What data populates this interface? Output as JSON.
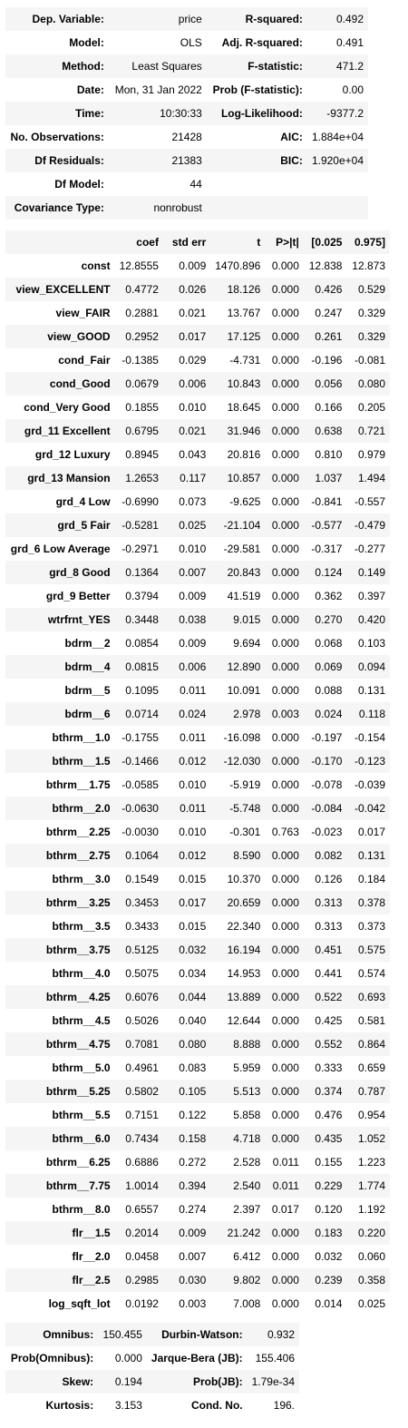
{
  "summary": [
    [
      "Dep. Variable:",
      "price",
      "R-squared:",
      "0.492"
    ],
    [
      "Model:",
      "OLS",
      "Adj. R-squared:",
      "0.491"
    ],
    [
      "Method:",
      "Least Squares",
      "F-statistic:",
      "471.2"
    ],
    [
      "Date:",
      "Mon, 31 Jan 2022",
      "Prob (F-statistic):",
      "0.00"
    ],
    [
      "Time:",
      "10:30:33",
      "Log-Likelihood:",
      "-9377.2"
    ],
    [
      "No. Observations:",
      "21428",
      "AIC:",
      "1.884e+04"
    ],
    [
      "Df Residuals:",
      "21383",
      "BIC:",
      "1.920e+04"
    ],
    [
      "Df Model:",
      "44",
      "",
      ""
    ],
    [
      "Covariance Type:",
      "nonrobust",
      "",
      ""
    ]
  ],
  "coef_headers": [
    "",
    "coef",
    "std err",
    "t",
    "P>|t|",
    "[0.025",
    "0.975]"
  ],
  "coef_rows": [
    [
      "const",
      "12.8555",
      "0.009",
      "1470.896",
      "0.000",
      "12.838",
      "12.873"
    ],
    [
      "view_EXCELLENT",
      "0.4772",
      "0.026",
      "18.126",
      "0.000",
      "0.426",
      "0.529"
    ],
    [
      "view_FAIR",
      "0.2881",
      "0.021",
      "13.767",
      "0.000",
      "0.247",
      "0.329"
    ],
    [
      "view_GOOD",
      "0.2952",
      "0.017",
      "17.125",
      "0.000",
      "0.261",
      "0.329"
    ],
    [
      "cond_Fair",
      "-0.1385",
      "0.029",
      "-4.731",
      "0.000",
      "-0.196",
      "-0.081"
    ],
    [
      "cond_Good",
      "0.0679",
      "0.006",
      "10.843",
      "0.000",
      "0.056",
      "0.080"
    ],
    [
      "cond_Very Good",
      "0.1855",
      "0.010",
      "18.645",
      "0.000",
      "0.166",
      "0.205"
    ],
    [
      "grd_11 Excellent",
      "0.6795",
      "0.021",
      "31.946",
      "0.000",
      "0.638",
      "0.721"
    ],
    [
      "grd_12 Luxury",
      "0.8945",
      "0.043",
      "20.816",
      "0.000",
      "0.810",
      "0.979"
    ],
    [
      "grd_13 Mansion",
      "1.2653",
      "0.117",
      "10.857",
      "0.000",
      "1.037",
      "1.494"
    ],
    [
      "grd_4 Low",
      "-0.6990",
      "0.073",
      "-9.625",
      "0.000",
      "-0.841",
      "-0.557"
    ],
    [
      "grd_5 Fair",
      "-0.5281",
      "0.025",
      "-21.104",
      "0.000",
      "-0.577",
      "-0.479"
    ],
    [
      "grd_6 Low Average",
      "-0.2971",
      "0.010",
      "-29.581",
      "0.000",
      "-0.317",
      "-0.277"
    ],
    [
      "grd_8 Good",
      "0.1364",
      "0.007",
      "20.843",
      "0.000",
      "0.124",
      "0.149"
    ],
    [
      "grd_9 Better",
      "0.3794",
      "0.009",
      "41.519",
      "0.000",
      "0.362",
      "0.397"
    ],
    [
      "wtrfrnt_YES",
      "0.3448",
      "0.038",
      "9.015",
      "0.000",
      "0.270",
      "0.420"
    ],
    [
      "bdrm__2",
      "0.0854",
      "0.009",
      "9.694",
      "0.000",
      "0.068",
      "0.103"
    ],
    [
      "bdrm__4",
      "0.0815",
      "0.006",
      "12.890",
      "0.000",
      "0.069",
      "0.094"
    ],
    [
      "bdrm__5",
      "0.1095",
      "0.011",
      "10.091",
      "0.000",
      "0.088",
      "0.131"
    ],
    [
      "bdrm__6",
      "0.0714",
      "0.024",
      "2.978",
      "0.003",
      "0.024",
      "0.118"
    ],
    [
      "bthrm__1.0",
      "-0.1755",
      "0.011",
      "-16.098",
      "0.000",
      "-0.197",
      "-0.154"
    ],
    [
      "bthrm__1.5",
      "-0.1466",
      "0.012",
      "-12.030",
      "0.000",
      "-0.170",
      "-0.123"
    ],
    [
      "bthrm__1.75",
      "-0.0585",
      "0.010",
      "-5.919",
      "0.000",
      "-0.078",
      "-0.039"
    ],
    [
      "bthrm__2.0",
      "-0.0630",
      "0.011",
      "-5.748",
      "0.000",
      "-0.084",
      "-0.042"
    ],
    [
      "bthrm__2.25",
      "-0.0030",
      "0.010",
      "-0.301",
      "0.763",
      "-0.023",
      "0.017"
    ],
    [
      "bthrm__2.75",
      "0.1064",
      "0.012",
      "8.590",
      "0.000",
      "0.082",
      "0.131"
    ],
    [
      "bthrm__3.0",
      "0.1549",
      "0.015",
      "10.370",
      "0.000",
      "0.126",
      "0.184"
    ],
    [
      "bthrm__3.25",
      "0.3453",
      "0.017",
      "20.659",
      "0.000",
      "0.313",
      "0.378"
    ],
    [
      "bthrm__3.5",
      "0.3433",
      "0.015",
      "22.340",
      "0.000",
      "0.313",
      "0.373"
    ],
    [
      "bthrm__3.75",
      "0.5125",
      "0.032",
      "16.194",
      "0.000",
      "0.451",
      "0.575"
    ],
    [
      "bthrm__4.0",
      "0.5075",
      "0.034",
      "14.953",
      "0.000",
      "0.441",
      "0.574"
    ],
    [
      "bthrm__4.25",
      "0.6076",
      "0.044",
      "13.889",
      "0.000",
      "0.522",
      "0.693"
    ],
    [
      "bthrm__4.5",
      "0.5026",
      "0.040",
      "12.644",
      "0.000",
      "0.425",
      "0.581"
    ],
    [
      "bthrm__4.75",
      "0.7081",
      "0.080",
      "8.888",
      "0.000",
      "0.552",
      "0.864"
    ],
    [
      "bthrm__5.0",
      "0.4961",
      "0.083",
      "5.959",
      "0.000",
      "0.333",
      "0.659"
    ],
    [
      "bthrm__5.25",
      "0.5802",
      "0.105",
      "5.513",
      "0.000",
      "0.374",
      "0.787"
    ],
    [
      "bthrm__5.5",
      "0.7151",
      "0.122",
      "5.858",
      "0.000",
      "0.476",
      "0.954"
    ],
    [
      "bthrm__6.0",
      "0.7434",
      "0.158",
      "4.718",
      "0.000",
      "0.435",
      "1.052"
    ],
    [
      "bthrm__6.25",
      "0.6886",
      "0.272",
      "2.528",
      "0.011",
      "0.155",
      "1.223"
    ],
    [
      "bthrm__7.75",
      "1.0014",
      "0.394",
      "2.540",
      "0.011",
      "0.229",
      "1.774"
    ],
    [
      "bthrm__8.0",
      "0.6557",
      "0.274",
      "2.397",
      "0.017",
      "0.120",
      "1.192"
    ],
    [
      "flr__1.5",
      "0.2014",
      "0.009",
      "21.242",
      "0.000",
      "0.183",
      "0.220"
    ],
    [
      "flr__2.0",
      "0.0458",
      "0.007",
      "6.412",
      "0.000",
      "0.032",
      "0.060"
    ],
    [
      "flr__2.5",
      "0.2985",
      "0.030",
      "9.802",
      "0.000",
      "0.239",
      "0.358"
    ],
    [
      "log_sqft_lot",
      "0.0192",
      "0.003",
      "7.008",
      "0.000",
      "0.014",
      "0.025"
    ]
  ],
  "diagnostics": [
    [
      "Omnibus:",
      "150.455",
      "Durbin-Watson:",
      "0.932"
    ],
    [
      "Prob(Omnibus):",
      "0.000",
      "Jarque-Bera (JB):",
      "155.406"
    ],
    [
      "Skew:",
      "0.194",
      "Prob(JB):",
      "1.79e-34"
    ],
    [
      "Kurtosis:",
      "3.153",
      "Cond. No.",
      "196."
    ]
  ],
  "colors": {
    "stripe": "#f5f5f5",
    "background": "#ffffff",
    "text": "#000000"
  }
}
